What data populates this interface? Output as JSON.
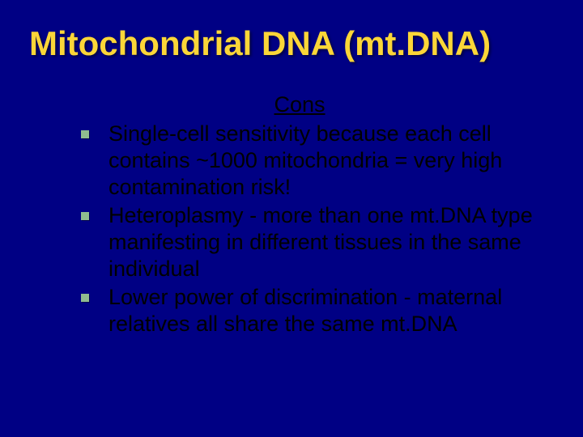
{
  "slide": {
    "title": "Mitochondrial DNA (mt.DNA)",
    "subheading": "Cons",
    "bullets": [
      "Single-cell sensitivity because each cell contains ~1000 mitochondria = very high contamination risk!",
      "Heteroplasmy - more than one mt.DNA type manifesting in different tissues in the same individual",
      "Lower power of discrimination - maternal relatives all share the same mt.DNA"
    ]
  },
  "style": {
    "background_color": "#000084",
    "title_color": "#fbd638",
    "body_text_color": "#000000",
    "bullet_color": "#8fbc8f",
    "title_fontsize": 42,
    "body_fontsize": 27,
    "title_weight": "bold",
    "font_family": "Arial"
  }
}
